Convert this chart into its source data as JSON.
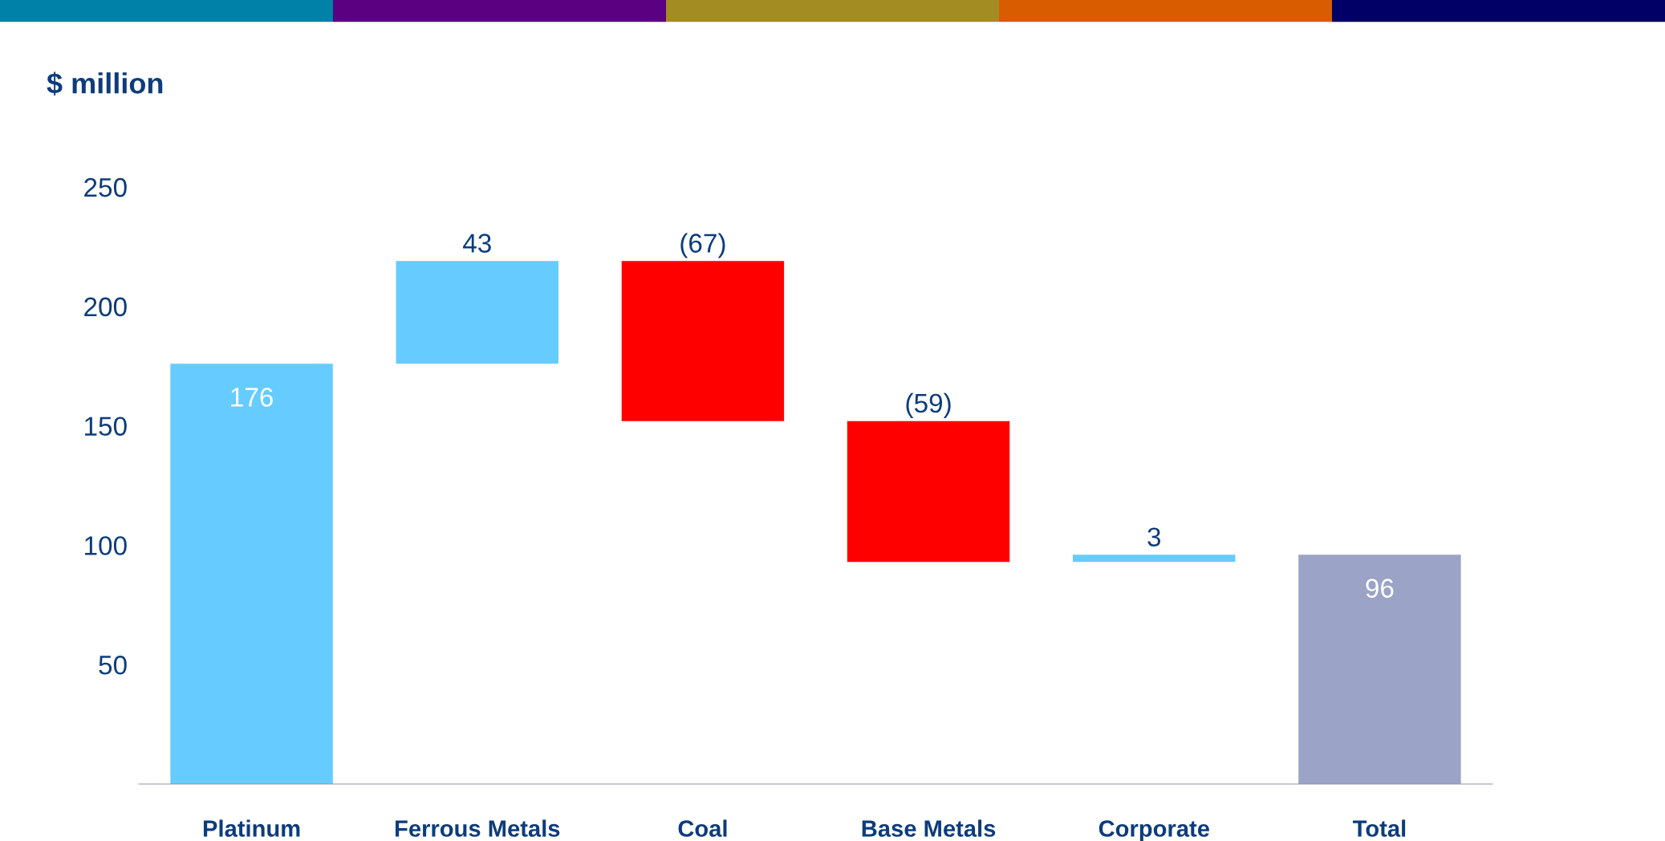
{
  "chart_data": {
    "type": "bar",
    "ylabel": "$ million",
    "categories": [
      "Platinum",
      "Ferrous Metals",
      "Coal",
      "Base Metals",
      "Corporate",
      "Total"
    ],
    "values": [
      176,
      43,
      -67,
      -59,
      3,
      96
    ],
    "base": [
      0,
      176,
      219,
      152,
      93,
      0
    ],
    "colors": [
      "#66ccff",
      "#66ccff",
      "#ff0000",
      "#ff0000",
      "#66ccff",
      "#9ba3c6"
    ],
    "value_labels": [
      "176",
      "43",
      "(67)",
      "(59)",
      "3",
      "96"
    ],
    "ylim": [
      0,
      250
    ],
    "yticks": [
      50,
      100,
      150,
      200,
      250
    ],
    "grid": false,
    "legend": false
  }
}
